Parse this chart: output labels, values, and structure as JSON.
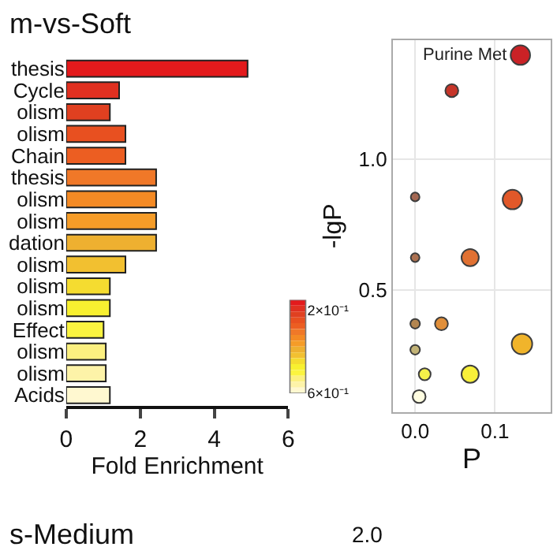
{
  "chart_data": [
    {
      "type": "bar",
      "orientation": "horizontal",
      "title": "m-vs-Soft",
      "xlabel": "Fold Enrichment",
      "categories": [
        "thesis",
        "Cycle",
        "olism",
        "olism",
        "Chain",
        "thesis",
        "olism",
        "olism",
        "dation",
        "olism",
        "olism",
        "olism",
        "Effect",
        "olism",
        "olism",
        "Acids"
      ],
      "values": [
        4.9,
        1.43,
        1.18,
        1.6,
        1.6,
        2.43,
        2.43,
        2.43,
        2.43,
        1.6,
        1.18,
        1.18,
        1.01,
        1.07,
        1.07,
        1.18
      ],
      "colors": [
        "#e31a1c",
        "#e03020",
        "#e04020",
        "#e85020",
        "#ec5e22",
        "#f07828",
        "#f48a24",
        "#f59c28",
        "#eeb030",
        "#f2c030",
        "#f5dc30",
        "#f8f030",
        "#fbf440",
        "#fcf080",
        "#fdf3a8",
        "#fff8d0"
      ],
      "xlim": [
        0,
        6
      ],
      "xticks": [
        0,
        2,
        4,
        6
      ],
      "grid": false,
      "clim": [
        0.6,
        0.15
      ],
      "cticks": [
        {
          "value": 0.2,
          "label": "2×10⁻¹"
        },
        {
          "value": 0.6,
          "label": "6×10⁻¹"
        }
      ],
      "annotations": [
        "s-Medium"
      ]
    },
    {
      "type": "bubble",
      "xlabel": "P",
      "ylabel": "-lgP",
      "x": [
        0.132,
        0.046,
        0.0,
        0.122,
        0.0,
        0.069,
        0.0,
        0.033,
        0.0,
        0.134,
        0.012,
        0.069,
        0.005
      ],
      "values": [
        1.395,
        1.26,
        0.855,
        0.845,
        0.624,
        0.624,
        0.372,
        0.372,
        0.273,
        0.295,
        0.18,
        0.18,
        0.095
      ],
      "sizes": [
        0.9,
        0.4,
        0.18,
        0.9,
        0.18,
        0.71,
        0.22,
        0.4,
        0.22,
        1,
        0.34,
        0.71,
        0.4
      ],
      "colors": [
        "#c8171b",
        "#c42b1e",
        "#a0604a",
        "#e0501e",
        "#a86a48",
        "#e06a28",
        "#b08048",
        "#e08a30",
        "#c0b070",
        "#f0b020",
        "#f5f040",
        "#f8f030",
        "#fffde0"
      ],
      "xlim": [
        -0.028,
        0.17
      ],
      "ylim": [
        0.036,
        1.452
      ],
      "xticks": [
        {
          "value": 0,
          "label": "0.0"
        },
        {
          "value": 0.1,
          "label": "0.1"
        }
      ],
      "yticks": [
        0.5,
        {
          "value": 1,
          "label": "1.0"
        }
      ],
      "grid": true,
      "annotations": [
        {
          "text": "Purine Met",
          "x": 0.132,
          "y": 1.395
        },
        "2.0"
      ]
    }
  ]
}
